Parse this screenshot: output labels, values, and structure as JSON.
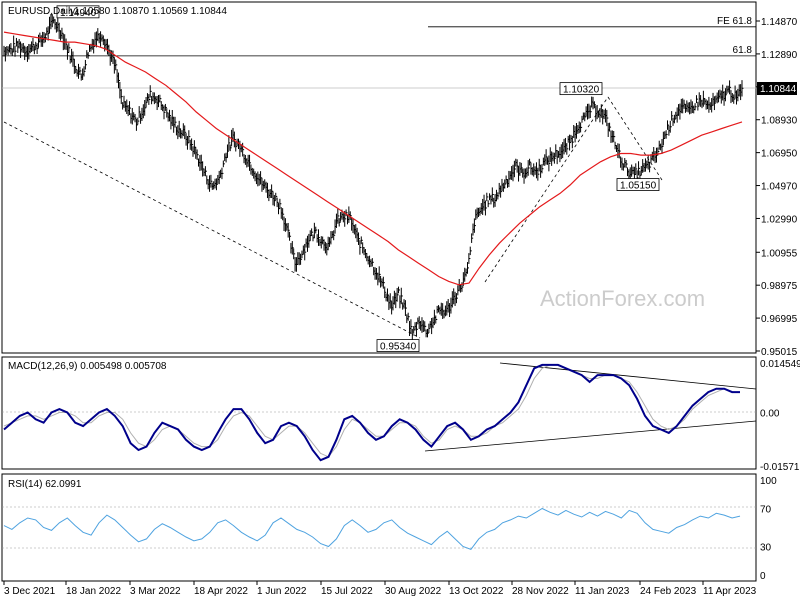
{
  "chart_data": [
    {
      "type": "line",
      "panel": "price",
      "title": "EURUSD,Daily",
      "ohlc_header": "1.10580 1.10870 1.10569 1.10844",
      "ylim": [
        0.95015,
        1.1487
      ],
      "yticks": [
        "1.14870",
        "1.12890",
        "1.10910",
        "1.08930",
        "1.06950",
        "1.04970",
        "1.02990",
        "1.00955",
        "0.98975",
        "0.96995",
        "0.95015"
      ],
      "last_price_label": "1.10844",
      "last_price": 1.10844,
      "xticks": [
        "3 Dec 2021",
        "18 Jan 2022",
        "3 Mar 2022",
        "18 Apr 2022",
        "1 Jun 2022",
        "15 Jul 2022",
        "30 Aug 2022",
        "13 Oct 2022",
        "28 Nov 2022",
        "11 Jan 2023",
        "24 Feb 2023",
        "11 Apr 2023"
      ],
      "horizontal_levels": [
        {
          "label": "FE 61.8",
          "value": 1.1452
        },
        {
          "label": "61.8",
          "value": 1.1277
        },
        {
          "label": "",
          "value": 1.1084
        }
      ],
      "annotations": [
        {
          "label": "1.14940",
          "date": "2022-01-13",
          "value": 1.1494
        },
        {
          "label": "0.95340",
          "date": "2022-09-28",
          "value": 0.9534
        },
        {
          "label": "1.10320",
          "date": "2023-02-02",
          "value": 1.1032
        },
        {
          "label": "1.05150",
          "date": "2023-03-15",
          "value": 1.0515
        }
      ],
      "series": [
        {
          "name": "",
          "kind": "ohlc_close_approx",
          "color": "#000000",
          "values": [
            1.13,
            1.132,
            1.134,
            1.131,
            1.133,
            1.136,
            1.141,
            1.149,
            1.143,
            1.132,
            1.123,
            1.115,
            1.13,
            1.138,
            1.141,
            1.131,
            1.12,
            1.098,
            1.094,
            1.088,
            1.096,
            1.104,
            1.102,
            1.096,
            1.089,
            1.084,
            1.08,
            1.074,
            1.066,
            1.056,
            1.049,
            1.054,
            1.069,
            1.078,
            1.073,
            1.066,
            1.059,
            1.052,
            1.047,
            1.043,
            1.036,
            1.02,
            1.003,
            1.009,
            1.018,
            1.022,
            1.016,
            1.013,
            1.028,
            1.031,
            1.03,
            1.018,
            1.011,
            1.004,
            0.996,
            0.987,
            0.977,
            0.984,
            0.975,
            0.96,
            0.969,
            0.962,
            0.968,
            0.975,
            0.974,
            0.982,
            0.989,
            0.998,
            1.028,
            1.036,
            1.041,
            1.042,
            1.049,
            1.055,
            1.061,
            1.057,
            1.061,
            1.058,
            1.063,
            1.066,
            1.069,
            1.071,
            1.077,
            1.086,
            1.09,
            1.097,
            1.095,
            1.09,
            1.079,
            1.068,
            1.06,
            1.056,
            1.058,
            1.061,
            1.066,
            1.073,
            1.084,
            1.092,
            1.097,
            1.094,
            1.099,
            1.101,
            1.097,
            1.1,
            1.104,
            1.107,
            1.102,
            1.108
          ]
        },
        {
          "name": "",
          "kind": "moving_average",
          "color": "#e41a1c",
          "values": [
            1.142,
            1.141,
            1.14,
            1.139,
            1.138,
            1.137,
            1.136,
            1.136,
            1.135,
            1.134,
            1.132,
            1.128,
            1.124,
            1.121,
            1.118,
            1.114,
            1.11,
            1.105,
            1.1,
            1.094,
            1.089,
            1.084,
            1.08,
            1.076,
            1.072,
            1.068,
            1.064,
            1.06,
            1.056,
            1.052,
            1.048,
            1.044,
            1.04,
            1.036,
            1.032,
            1.028,
            1.024,
            1.02,
            1.016,
            1.011,
            1.007,
            1.003,
            0.999,
            0.995,
            0.992,
            0.99,
            0.991,
            1.0,
            1.008,
            1.015,
            1.021,
            1.027,
            1.032,
            1.037,
            1.041,
            1.045,
            1.05,
            1.056,
            1.06,
            1.064,
            1.067,
            1.069,
            1.069,
            1.068,
            1.068,
            1.069,
            1.071,
            1.074,
            1.077,
            1.08,
            1.082,
            1.084,
            1.086,
            1.088
          ]
        }
      ]
    },
    {
      "type": "line",
      "panel": "macd",
      "title": "MACD(12,26,9) 0.005498 0.005708",
      "ylim": [
        -0.015712,
        0.014549
      ],
      "yticks": [
        "0.014549",
        "0.00",
        "-0.015712"
      ],
      "series": [
        {
          "name": "",
          "color": "#00008b",
          "values": [
            -0.005,
            -0.003,
            -0.001,
            0.0,
            -0.002,
            -0.003,
            0.0,
            0.001,
            0.0,
            -0.003,
            -0.004,
            -0.002,
            0.0,
            0.001,
            -0.001,
            -0.004,
            -0.009,
            -0.011,
            -0.01,
            -0.006,
            -0.003,
            -0.004,
            -0.005,
            -0.008,
            -0.01,
            -0.011,
            -0.01,
            -0.006,
            -0.002,
            0.001,
            0.001,
            -0.002,
            -0.006,
            -0.009,
            -0.008,
            -0.004,
            -0.003,
            -0.004,
            -0.007,
            -0.011,
            -0.014,
            -0.013,
            -0.008,
            -0.002,
            -0.001,
            -0.003,
            -0.006,
            -0.008,
            -0.007,
            -0.004,
            -0.002,
            -0.003,
            -0.005,
            -0.008,
            -0.01,
            -0.007,
            -0.004,
            -0.003,
            -0.005,
            -0.008,
            -0.007,
            -0.005,
            -0.004,
            -0.002,
            0.0,
            0.003,
            0.008,
            0.013,
            0.014,
            0.014,
            0.014,
            0.013,
            0.012,
            0.011,
            0.009,
            0.011,
            0.011,
            0.011,
            0.01,
            0.008,
            0.004,
            -0.001,
            -0.004,
            -0.005,
            -0.006,
            -0.004,
            -0.001,
            0.002,
            0.004,
            0.006,
            0.007,
            0.007,
            0.006,
            0.006
          ]
        },
        {
          "name": "",
          "color": "#b0b0b0",
          "values": [
            -0.004,
            -0.003,
            -0.002,
            -0.001,
            -0.001,
            -0.002,
            -0.001,
            0.0,
            0.0,
            -0.001,
            -0.003,
            -0.003,
            -0.001,
            0.0,
            0.0,
            -0.002,
            -0.006,
            -0.009,
            -0.01,
            -0.008,
            -0.005,
            -0.004,
            -0.005,
            -0.007,
            -0.009,
            -0.01,
            -0.01,
            -0.008,
            -0.004,
            -0.001,
            0.0,
            -0.001,
            -0.004,
            -0.007,
            -0.008,
            -0.006,
            -0.004,
            -0.004,
            -0.006,
            -0.009,
            -0.012,
            -0.013,
            -0.01,
            -0.005,
            -0.002,
            -0.003,
            -0.005,
            -0.007,
            -0.007,
            -0.005,
            -0.003,
            -0.003,
            -0.004,
            -0.007,
            -0.009,
            -0.008,
            -0.005,
            -0.004,
            -0.005,
            -0.007,
            -0.007,
            -0.006,
            -0.004,
            -0.003,
            -0.001,
            0.001,
            0.005,
            0.01,
            0.013,
            0.014,
            0.014,
            0.013,
            0.012,
            0.011,
            0.01,
            0.01,
            0.011,
            0.011,
            0.01,
            0.009,
            0.006,
            0.002,
            -0.002,
            -0.004,
            -0.005,
            -0.004,
            -0.002,
            0.001,
            0.003,
            0.005,
            0.006,
            0.007,
            0.006,
            0.006
          ]
        }
      ],
      "trendlines": "converging triangle: upper descending from Nov 2022 high, lower ascending from Sep 2022 low"
    },
    {
      "type": "line",
      "panel": "rsi",
      "title": "RSI(14) 62.0991",
      "ylim": [
        0,
        100
      ],
      "yticks": [
        "100",
        "70",
        "30",
        "0"
      ],
      "levels": [
        70,
        30
      ],
      "series": [
        {
          "name": "",
          "color": "#4fa3e0",
          "values": [
            52,
            48,
            55,
            60,
            58,
            50,
            47,
            55,
            60,
            52,
            45,
            42,
            55,
            63,
            58,
            50,
            42,
            35,
            38,
            48,
            54,
            50,
            45,
            40,
            36,
            38,
            45,
            55,
            58,
            52,
            45,
            40,
            36,
            42,
            55,
            60,
            54,
            48,
            45,
            40,
            33,
            30,
            38,
            52,
            58,
            52,
            45,
            48,
            55,
            58,
            50,
            44,
            40,
            36,
            32,
            40,
            46,
            38,
            30,
            27,
            38,
            45,
            48,
            55,
            58,
            62,
            60,
            65,
            70,
            66,
            63,
            68,
            64,
            61,
            66,
            62,
            67,
            64,
            60,
            68,
            65,
            55,
            48,
            46,
            44,
            50,
            53,
            58,
            62,
            60,
            65,
            63,
            60,
            62
          ]
        }
      ]
    }
  ]
}
